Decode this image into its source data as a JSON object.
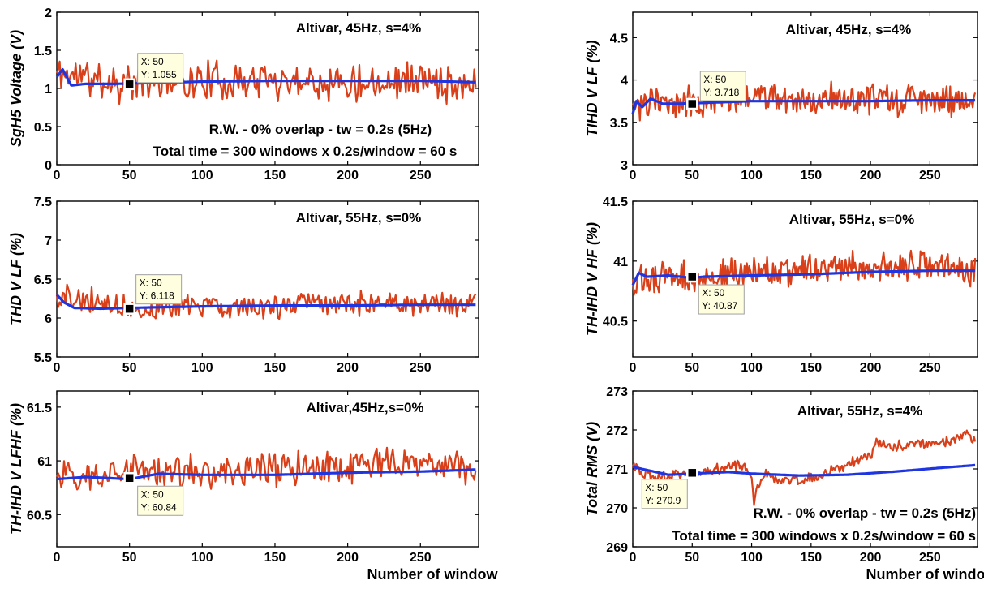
{
  "colors": {
    "raw": "#d9401a",
    "avg": "#1f35e0",
    "tooltip_bg": "#ffffe0",
    "tooltip_border": "#a0a0a0",
    "marker": "#000000"
  },
  "chart_data": [
    {
      "type": "line",
      "ylabel": "SgH5 Voltage (V)",
      "xlabel": "",
      "xlim": [
        0,
        290
      ],
      "ylim": [
        0,
        2
      ],
      "xticks": [
        "0",
        "50",
        "100",
        "150",
        "200",
        "250"
      ],
      "yticks": [
        "0",
        "0.5",
        "1",
        "1.5",
        "2"
      ],
      "annotations": [
        "Altivar, 45Hz, s=4%",
        "R.W.   - 0% overlap   -     tw = 0.2s  (5Hz)",
        "Total time = 300 windows x 0.2s/window = 60 s"
      ],
      "datatip": {
        "x": 50,
        "y": 1.055,
        "text_x": "X: 50",
        "text_y": "Y: 1.055"
      },
      "raw_signal": {
        "mean": 1.1,
        "amplitude": 0.22,
        "start": 1.2,
        "seed": 11
      },
      "series": [
        {
          "role": "raw",
          "x": [
            0,
            50,
            100,
            150,
            200,
            250,
            290
          ],
          "y": [
            1.2,
            1.06,
            1.1,
            1.12,
            1.1,
            1.12,
            1.05
          ]
        },
        {
          "role": "average",
          "x": [
            0,
            4,
            10,
            20,
            40,
            60,
            100,
            150,
            200,
            250,
            290
          ],
          "y": [
            1.15,
            1.25,
            1.04,
            1.06,
            1.06,
            1.07,
            1.09,
            1.1,
            1.1,
            1.1,
            1.08
          ]
        }
      ]
    },
    {
      "type": "line",
      "ylabel": "TIHD V LF (%)",
      "xlabel": "",
      "xlim": [
        0,
        290
      ],
      "ylim": [
        3,
        4.8
      ],
      "xticks": [
        "0",
        "50",
        "100",
        "150",
        "200",
        "250"
      ],
      "yticks": [
        "3",
        "3.5",
        "4",
        "4.5"
      ],
      "annotations": [
        "Altivar, 45Hz, s=4%"
      ],
      "datatip": {
        "x": 50,
        "y": 3.718,
        "text_x": "X: 50",
        "text_y": "Y: 3.718"
      },
      "raw_signal": {
        "mean": 3.76,
        "amplitude": 0.16,
        "start": 3.7,
        "seed": 23
      },
      "series": [
        {
          "role": "raw",
          "x": [
            0,
            50,
            100,
            150,
            200,
            250,
            290
          ],
          "y": [
            3.7,
            3.75,
            3.8,
            3.78,
            3.76,
            3.78,
            3.74
          ]
        },
        {
          "role": "average",
          "x": [
            0,
            3,
            8,
            15,
            25,
            40,
            60,
            100,
            150,
            200,
            250,
            290
          ],
          "y": [
            3.6,
            3.75,
            3.68,
            3.78,
            3.72,
            3.72,
            3.73,
            3.75,
            3.75,
            3.75,
            3.76,
            3.76
          ]
        }
      ]
    },
    {
      "type": "line",
      "ylabel": "THD V LF (%)",
      "xlabel": "",
      "xlim": [
        0,
        290
      ],
      "ylim": [
        5.5,
        7.5
      ],
      "xticks": [
        "0",
        "50",
        "100",
        "150",
        "200",
        "250"
      ],
      "yticks": [
        "5.5",
        "6",
        "6.5",
        "7",
        "7.5"
      ],
      "annotations": [
        "Altivar, 55Hz, s=0%"
      ],
      "datatip": {
        "x": 50,
        "y": 6.118,
        "text_x": "X: 50",
        "text_y": "Y: 6.118"
      },
      "raw_signal": {
        "mean": 6.16,
        "amplitude": 0.14,
        "start": 6.3,
        "seed": 37
      },
      "series": [
        {
          "role": "raw",
          "x": [
            0,
            50,
            100,
            150,
            200,
            250,
            290
          ],
          "y": [
            6.3,
            6.12,
            6.15,
            6.16,
            6.17,
            6.16,
            6.2
          ]
        },
        {
          "role": "average",
          "x": [
            0,
            5,
            12,
            30,
            50,
            100,
            150,
            200,
            250,
            290
          ],
          "y": [
            6.3,
            6.2,
            6.13,
            6.12,
            6.13,
            6.15,
            6.16,
            6.16,
            6.17,
            6.17
          ]
        }
      ]
    },
    {
      "type": "line",
      "ylabel": "TH-IHD V HF (%)",
      "xlabel": "",
      "xlim": [
        0,
        290
      ],
      "ylim": [
        40.2,
        41.5
      ],
      "xticks": [
        "0",
        "50",
        "100",
        "150",
        "200",
        "250"
      ],
      "yticks": [
        "40.5",
        "41",
        "41.5"
      ],
      "annotations": [
        "Altivar, 55Hz, s=0%"
      ],
      "datatip": {
        "x": 50,
        "y": 40.87,
        "text_x": "X: 50",
        "text_y": "Y: 40.87"
      },
      "raw_signal": {
        "mean": 40.92,
        "amplitude": 0.11,
        "start": 40.85,
        "seed": 53
      },
      "series": [
        {
          "role": "raw",
          "x": [
            0,
            50,
            100,
            150,
            200,
            250,
            290
          ],
          "y": [
            40.85,
            40.87,
            40.9,
            40.92,
            40.95,
            40.96,
            40.9
          ]
        },
        {
          "role": "average",
          "x": [
            0,
            5,
            12,
            30,
            50,
            60,
            100,
            150,
            200,
            250,
            290
          ],
          "y": [
            40.8,
            40.9,
            40.87,
            40.88,
            40.86,
            40.87,
            40.88,
            40.89,
            40.91,
            40.92,
            40.92
          ]
        }
      ]
    },
    {
      "type": "line",
      "ylabel": "TH-IHD V LFHF (%)",
      "xlabel": "Number of window",
      "xlim": [
        0,
        290
      ],
      "ylim": [
        60.2,
        61.65
      ],
      "xticks": [
        "0",
        "50",
        "100",
        "150",
        "200",
        "250"
      ],
      "yticks": [
        "60.5",
        "61",
        "61.5"
      ],
      "annotations": [
        "Altivar,45Hz,s=0%"
      ],
      "datatip": {
        "x": 50,
        "y": 60.84,
        "text_x": "X: 50",
        "text_y": "Y: 60.84"
      },
      "raw_signal": {
        "mean": 60.9,
        "amplitude": 0.14,
        "start": 60.85,
        "seed": 71
      },
      "series": [
        {
          "role": "raw",
          "x": [
            0,
            50,
            100,
            150,
            200,
            250,
            290
          ],
          "y": [
            60.85,
            60.9,
            60.88,
            60.92,
            60.95,
            60.98,
            60.95
          ]
        },
        {
          "role": "average",
          "x": [
            0,
            20,
            50,
            70,
            100,
            150,
            200,
            250,
            290
          ],
          "y": [
            60.83,
            60.85,
            60.83,
            60.88,
            60.87,
            60.87,
            60.89,
            60.9,
            60.92
          ]
        }
      ]
    },
    {
      "type": "line",
      "ylabel": "Total RMS (V)",
      "xlabel": "Number of window",
      "xlim": [
        0,
        290
      ],
      "ylim": [
        269,
        273
      ],
      "xticks": [
        "0",
        "50",
        "100",
        "150",
        "200",
        "250"
      ],
      "yticks": [
        "269",
        "270",
        "271",
        "272",
        "273"
      ],
      "annotations": [
        "Altivar, 55Hz, s=4%",
        "R.W.    -   0% overlap   -  tw = 0.2s  (5Hz)",
        "Total time = 300 windows x 0.2s/window = 60 s"
      ],
      "datatip": {
        "x": 50,
        "y": 270.9,
        "text_x": "X: 50",
        "text_y": "Y: 270.9"
      },
      "raw_signal": {
        "mean": 0,
        "amplitude": 0.12,
        "start": 271.05,
        "seed": 89
      },
      "series": [
        {
          "role": "raw",
          "x": [
            0,
            10,
            20,
            30,
            50,
            70,
            90,
            100,
            102,
            105,
            110,
            130,
            150,
            170,
            190,
            200,
            205,
            215,
            230,
            250,
            270,
            280,
            290
          ],
          "y": [
            271.05,
            270.9,
            270.8,
            270.85,
            270.9,
            271.0,
            271.1,
            270.8,
            270.1,
            270.5,
            270.85,
            270.7,
            270.75,
            271.0,
            271.25,
            271.35,
            271.75,
            271.55,
            271.6,
            271.65,
            271.75,
            271.95,
            271.6
          ]
        },
        {
          "role": "average",
          "x": [
            0,
            15,
            30,
            50,
            80,
            100,
            140,
            180,
            220,
            260,
            290
          ],
          "y": [
            271.05,
            270.95,
            270.85,
            270.88,
            270.92,
            270.88,
            270.83,
            270.85,
            270.93,
            271.03,
            271.1
          ]
        }
      ]
    }
  ]
}
